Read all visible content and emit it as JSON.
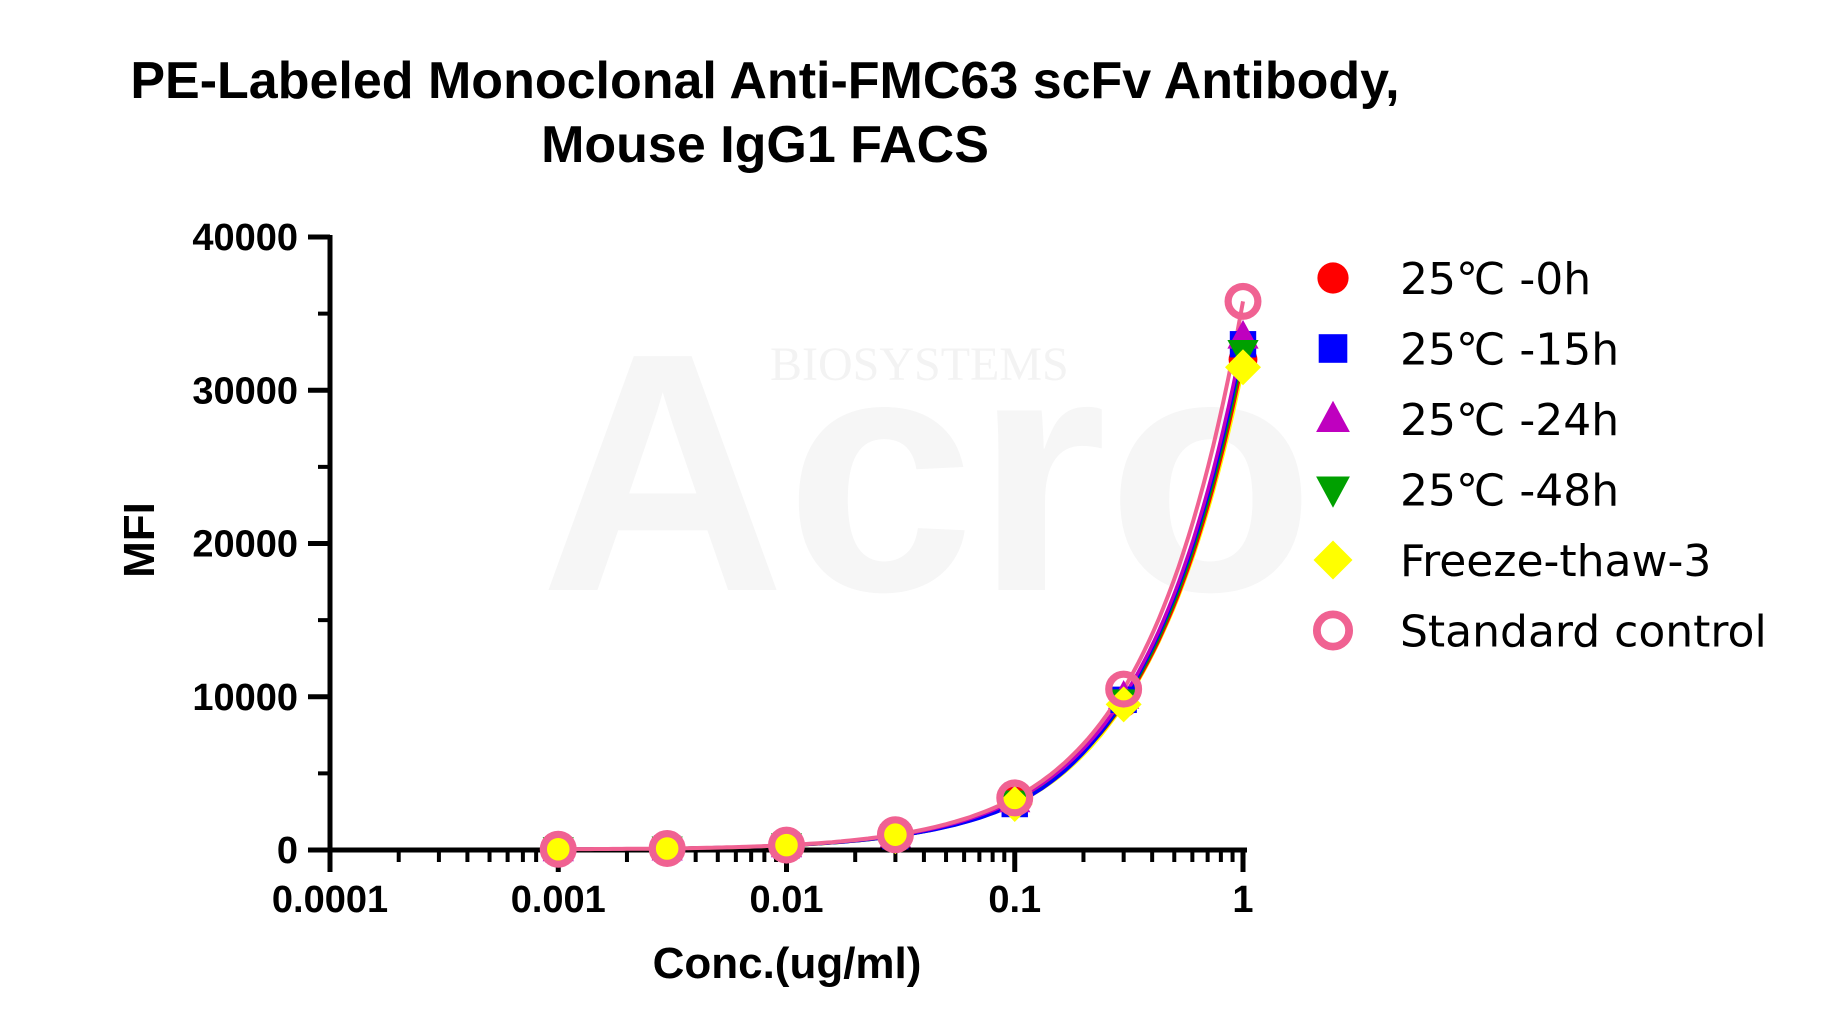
{
  "chart_data": {
    "type": "scatter",
    "title_lines": [
      "PE-Labeled Monoclonal Anti-FMC63 scFv Antibody,",
      "Mouse IgG1 FACS"
    ],
    "xlabel": "Conc.(ug/ml)",
    "ylabel": "MFI",
    "xscale": "log",
    "xlim": [
      0.0001,
      1
    ],
    "ylim": [
      0,
      40000
    ],
    "x_ticks": [
      0.0001,
      0.001,
      0.01,
      0.1,
      1
    ],
    "x_tick_labels": [
      "0.0001",
      "0.001",
      "0.01",
      "0.1",
      "1"
    ],
    "y_ticks": [
      0,
      10000,
      20000,
      30000,
      40000
    ],
    "y_tick_labels": [
      "0",
      "10000",
      "20000",
      "30000",
      "40000"
    ],
    "grid": false,
    "legend_position": "right",
    "fit_curves": true,
    "x": [
      0.001,
      0.003,
      0.01,
      0.03,
      0.1,
      0.3,
      1
    ],
    "series": [
      {
        "name": "25℃ -0h",
        "marker": "circle",
        "color": "#ff0000",
        "values": [
          50,
          100,
          300,
          950,
          3200,
          9600,
          32000
        ]
      },
      {
        "name": "25℃ -15h",
        "marker": "square",
        "color": "#0000ff",
        "values": [
          50,
          100,
          300,
          900,
          3000,
          9800,
          33000
        ]
      },
      {
        "name": "25℃ -24h",
        "marker": "triangle-up",
        "color": "#bf00bf",
        "values": [
          50,
          100,
          310,
          950,
          3250,
          10000,
          33500
        ]
      },
      {
        "name": "25℃ -48h",
        "marker": "triangle-down",
        "color": "#00a000",
        "values": [
          50,
          100,
          300,
          900,
          3100,
          9700,
          32500
        ]
      },
      {
        "name": "Freeze-thaw-3",
        "marker": "diamond",
        "color": "#ffff00",
        "values": [
          50,
          100,
          290,
          900,
          3000,
          9500,
          31500
        ]
      },
      {
        "name": "Standard control",
        "marker": "ring",
        "color": "#f06292",
        "values": [
          50,
          100,
          320,
          1000,
          3400,
          10500,
          35800
        ]
      }
    ]
  }
}
